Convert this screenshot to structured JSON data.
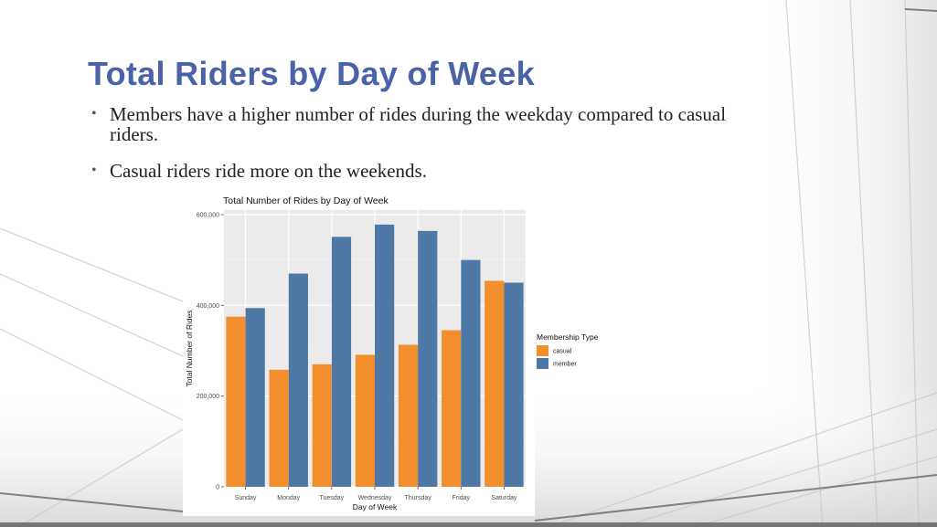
{
  "slide": {
    "title": "Total Riders by Day of Week",
    "bullets": [
      "Members have a higher number of rides during the weekday compared to casual riders.",
      "Casual riders ride more on the weekends."
    ],
    "bullet_symbol": "•"
  },
  "chart_data": {
    "type": "bar",
    "title": "Total Number of Rides by Day of Week",
    "xlabel": "Day of Week",
    "ylabel": "Total Number of Rides",
    "categories": [
      "Sunday",
      "Monday",
      "Tuesday",
      "Wednesday",
      "Thursday",
      "Friday",
      "Saturday"
    ],
    "series": [
      {
        "name": "casual",
        "color": "#f28e2b",
        "values": [
          375000,
          258000,
          270000,
          291000,
          313000,
          345000,
          454000
        ]
      },
      {
        "name": "member",
        "color": "#4e79a7",
        "values": [
          394000,
          470000,
          551000,
          578000,
          564000,
          500000,
          450000
        ]
      }
    ],
    "ylim": [
      0,
      610000
    ],
    "yticks": [
      0,
      200000,
      400000,
      600000
    ],
    "ytick_labels": [
      "0",
      "200,000",
      "400,000",
      "600,000"
    ],
    "grid": true,
    "legend": {
      "title": "Membership Type",
      "placement": "right"
    }
  }
}
